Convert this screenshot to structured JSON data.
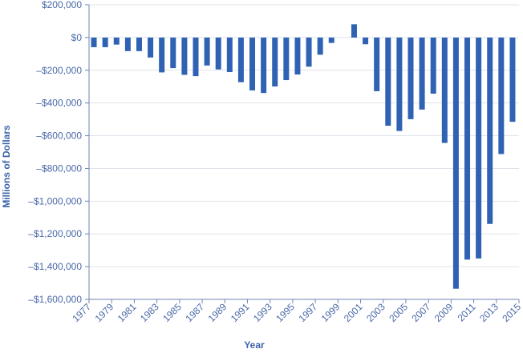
{
  "chart_data": {
    "type": "bar",
    "title": "",
    "xlabel": "Year",
    "ylabel": "Millions of Dollars",
    "ylim": [
      -1600000,
      200000
    ],
    "grid": true,
    "legend": null,
    "y_ticks": [
      200000,
      0,
      -200000,
      -400000,
      -600000,
      -800000,
      -1000000,
      -1200000,
      -1400000,
      -1600000
    ],
    "y_tick_labels": [
      "$200,000",
      "$0",
      "–$200,000",
      "–$400,000",
      "–$600,000",
      "–$800,000",
      "–$1,000,000",
      "–$1,200,000",
      "–$1,400,000",
      "–$1,600,000"
    ],
    "x_tick_labels": [
      "1977",
      "1979",
      "1981",
      "1983",
      "1985",
      "1987",
      "1989",
      "1991",
      "1993",
      "1995",
      "1997",
      "1999",
      "2001",
      "2003",
      "2005",
      "2007",
      "2009",
      "2011",
      "2013",
      "2015"
    ],
    "categories": [
      "1977",
      "1978",
      "1979",
      "1980",
      "1981",
      "1982",
      "1983",
      "1984",
      "1985",
      "1986",
      "1987",
      "1988",
      "1989",
      "1990",
      "1991",
      "1992",
      "1993",
      "1994",
      "1995",
      "1996",
      "1997",
      "1998",
      "1999",
      "2000",
      "2001",
      "2002",
      "2003",
      "2004",
      "2005",
      "2006",
      "2007",
      "2008",
      "2009",
      "2010",
      "2011",
      "2012",
      "2013",
      "2014"
    ],
    "values": [
      -59000,
      -59000,
      -43000,
      -83000,
      -83000,
      -122000,
      -213000,
      -187000,
      -228000,
      -236000,
      -171000,
      -195000,
      -211000,
      -273000,
      -323000,
      -339000,
      -299000,
      -260000,
      -226000,
      -178000,
      -105000,
      -33000,
      0,
      81000,
      -41000,
      -328000,
      -539000,
      -571000,
      -499000,
      -440000,
      -343000,
      -644000,
      -1535000,
      -1357000,
      -1350000,
      -1139000,
      -712000,
      -515000
    ],
    "colors": {
      "bar": "#2f62b3",
      "text": "#4a69a8",
      "axis_title": "#3d64ab",
      "grid": "#dfe3ea",
      "axis": "#6f86b5"
    }
  }
}
